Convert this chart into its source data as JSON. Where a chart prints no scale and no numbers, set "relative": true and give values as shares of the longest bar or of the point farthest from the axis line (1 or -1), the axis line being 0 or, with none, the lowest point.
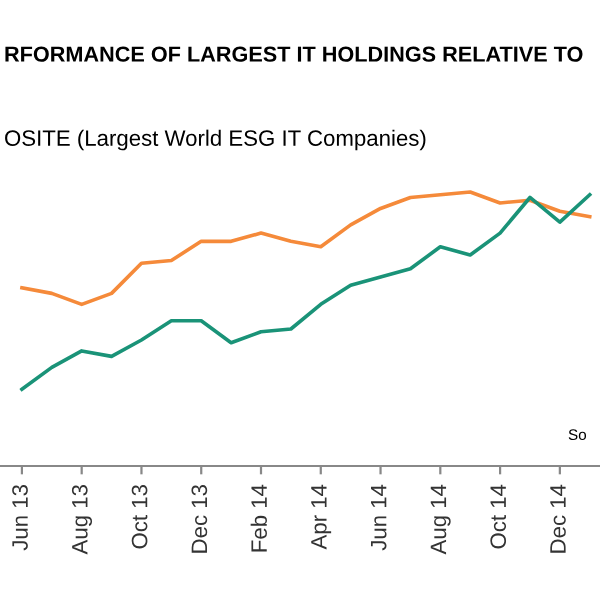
{
  "chart_data": {
    "type": "line",
    "relative": true,
    "title": "RFORMANCE OF LARGEST IT HOLDINGS RELATIVE TO",
    "annotations": [
      "OSITE (Largest World ESG IT Companies)",
      "So"
    ],
    "categories": [
      "Jun 13",
      null,
      "Aug 13",
      null,
      "Oct 13",
      null,
      "Dec 13",
      null,
      "Feb 14",
      null,
      "Apr 14",
      null,
      "Jun 14",
      null,
      "Aug 14",
      null,
      "Oct 14",
      null,
      "Dec 14",
      null
    ],
    "series": [
      {
        "color": "#f58a3a",
        "values": [
          0.65,
          0.63,
          0.59,
          0.63,
          0.74,
          0.75,
          0.82,
          0.82,
          0.85,
          0.82,
          0.8,
          0.88,
          0.94,
          0.98,
          0.99,
          1,
          0.96,
          0.97,
          0.93,
          0.91
        ]
      },
      {
        "color": "#1a9378",
        "values": [
          0.28,
          0.36,
          0.42,
          0.4,
          0.46,
          0.53,
          0.53,
          0.45,
          0.49,
          0.5,
          0.59,
          0.66,
          0.69,
          0.72,
          0.8,
          0.77,
          0.85,
          0.98,
          0.89,
          0.99
        ]
      }
    ],
    "grid": false,
    "legend": false
  }
}
